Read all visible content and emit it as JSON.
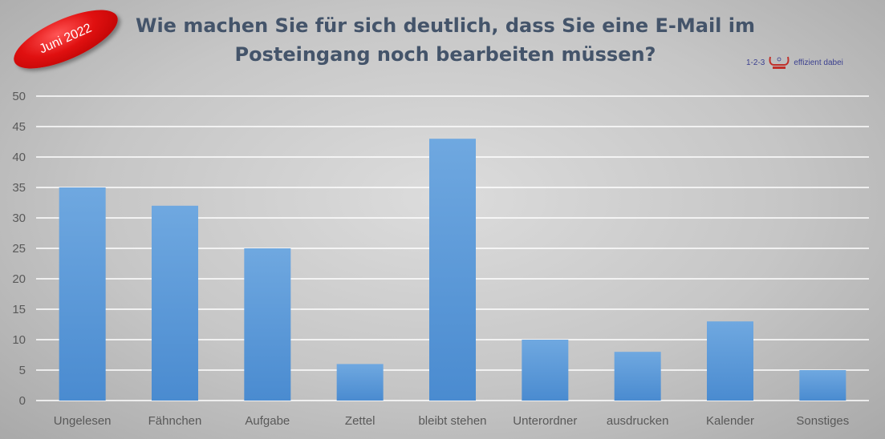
{
  "badge": {
    "text": "Juni 2022",
    "color": "#e01010"
  },
  "logo": {
    "left": "1-2-3",
    "right": "effizient dabei"
  },
  "chart_data": {
    "type": "bar",
    "title": "Wie machen Sie für sich deutlich, dass Sie eine E-Mail im Posteingang noch bearbeiten müssen?",
    "categories": [
      "Ungelesen",
      "Fähnchen",
      "Aufgabe",
      "Zettel",
      "bleibt stehen",
      "Unterordner",
      "ausdrucken",
      "Kalender",
      "Sonstiges"
    ],
    "values": [
      35,
      32,
      25,
      6,
      43,
      10,
      8,
      13,
      5
    ],
    "ylim": [
      0,
      50
    ],
    "yticks": [
      0,
      5,
      10,
      15,
      20,
      25,
      30,
      35,
      40,
      45,
      50
    ],
    "grid": true,
    "legend": "none",
    "bar_color": "#5b9bd5"
  }
}
